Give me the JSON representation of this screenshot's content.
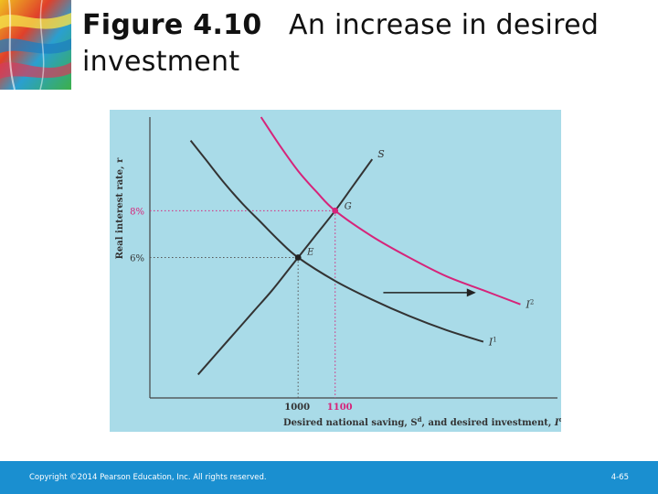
{
  "title": {
    "figure_label": "Figure 4.10",
    "text": "An increase in desired investment"
  },
  "chart_data": {
    "type": "line",
    "ylabel": "Real interest rate, r",
    "xlabel": "Desired national saving, S",
    "xlabel_sup": "d",
    "xlabel_mid": ", and desired investment, ",
    "xlabel_var": "I",
    "xlabel_var_sup": "d",
    "ytick_labels": [
      {
        "label": "8%",
        "value": 8,
        "color": "#d6247a"
      },
      {
        "label": "6%",
        "value": 6,
        "color": "#333333"
      }
    ],
    "xtick_labels": [
      {
        "label": "1000",
        "value": 1000,
        "color": "#333333"
      },
      {
        "label": "1100",
        "value": 1100,
        "color": "#d6247a"
      }
    ],
    "series": [
      {
        "name": "S",
        "color": "#333333",
        "x": [
          730,
          780,
          830,
          880,
          930,
          980,
          1000,
          1050,
          1100,
          1150,
          1200
        ],
        "y": [
          1.0,
          1.9,
          2.8,
          3.7,
          4.6,
          5.6,
          6.0,
          7.0,
          8.0,
          9.1,
          10.2
        ]
      },
      {
        "name": "I",
        "sup": "1",
        "color": "#333333",
        "x": [
          710,
          750,
          800,
          850,
          900,
          950,
          1000,
          1100,
          1200,
          1300,
          1400,
          1500
        ],
        "y": [
          11.0,
          10.2,
          9.2,
          8.3,
          7.5,
          6.7,
          6.0,
          5.0,
          4.2,
          3.5,
          2.9,
          2.4
        ]
      },
      {
        "name": "I",
        "sup": "2",
        "color": "#d6247a",
        "x": [
          900,
          950,
          1000,
          1050,
          1100,
          1200,
          1300,
          1400,
          1500,
          1600
        ],
        "y": [
          12.0,
          10.8,
          9.7,
          8.8,
          8.0,
          6.9,
          6.0,
          5.2,
          4.6,
          4.0
        ]
      }
    ],
    "points": [
      {
        "label": "E",
        "x": 1000,
        "y": 6,
        "color": "#222222"
      },
      {
        "label": "G",
        "x": 1100,
        "y": 8,
        "color": "#d6247a"
      }
    ],
    "arrow": {
      "from": {
        "x": 1230,
        "y": 4.5
      },
      "to": {
        "x": 1480,
        "y": 4.5
      }
    },
    "xlim": [
      600,
      1700
    ],
    "ylim": [
      0,
      12
    ],
    "grid": false
  },
  "footer": {
    "copyright": "Copyright ©2014 Pearson Education, Inc. All rights reserved.",
    "page": "4-65"
  },
  "colors": {
    "panel": "#a9dbe8",
    "footer": "#1a8fd0",
    "accent": "#d6247a"
  }
}
